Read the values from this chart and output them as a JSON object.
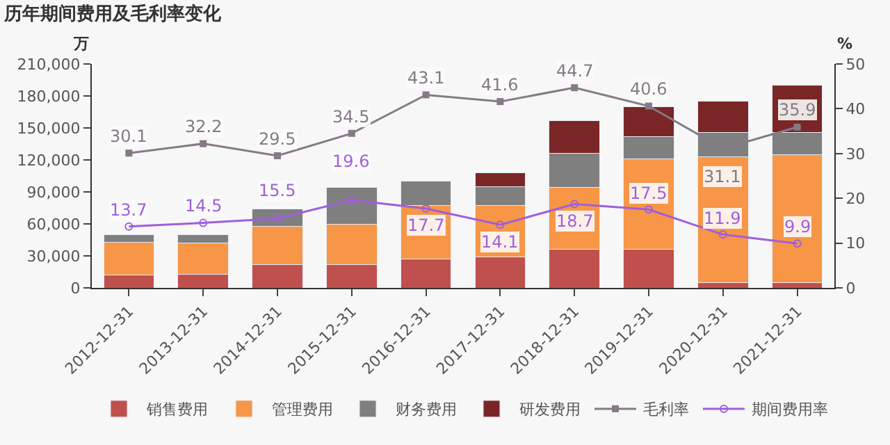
{
  "chart_data": {
    "type": "bar",
    "title": "历年期间费用及毛利率变化",
    "ylabel": "万",
    "y2label": "%",
    "categories": [
      "2012-12-31",
      "2013-12-31",
      "2014-12-31",
      "2015-12-31",
      "2016-12-31",
      "2017-12-31",
      "2018-12-31",
      "2019-12-31",
      "2020-12-31",
      "2021-12-31"
    ],
    "stacked": true,
    "legend": "bottom",
    "grid": false,
    "ylim": [
      0,
      210000
    ],
    "yticks": [
      {
        "value": 0,
        "label": "0"
      },
      {
        "value": 30000,
        "label": "30,000"
      },
      {
        "value": 60000,
        "label": "60,000"
      },
      {
        "value": 90000,
        "label": "90,000"
      },
      {
        "value": 120000,
        "label": "120,000"
      },
      {
        "value": 150000,
        "label": "150,000"
      },
      {
        "value": 180000,
        "label": "180,000"
      },
      {
        "value": 210000,
        "label": "210,000"
      }
    ],
    "y2lim": [
      0,
      50
    ],
    "y2ticks": [
      0,
      10,
      20,
      30,
      40,
      50
    ],
    "series": [
      {
        "name": "销售费用",
        "color": "#c0504d",
        "values": [
          12000,
          13000,
          22000,
          22000,
          27000,
          29000,
          36000,
          36000,
          5000,
          5000
        ]
      },
      {
        "name": "管理费用",
        "color": "#f79646",
        "values": [
          31000,
          29000,
          36000,
          38000,
          50000,
          48000,
          58000,
          85000,
          118000,
          120000
        ]
      },
      {
        "name": "财务费用",
        "color": "#7f7f7f",
        "values": [
          7000,
          8000,
          16000,
          34000,
          23000,
          18000,
          32000,
          21000,
          23000,
          21000
        ]
      },
      {
        "name": "研发费用",
        "color": "#7b2626",
        "values": [
          null,
          null,
          null,
          null,
          null,
          13000,
          31000,
          28000,
          29000,
          44000
        ]
      },
      {
        "name": "毛利率",
        "type": "line",
        "axis": "y2",
        "color": "#857a85",
        "marker": "square",
        "values": [
          30.1,
          32.2,
          29.5,
          34.5,
          43.1,
          41.6,
          44.7,
          40.6,
          31.1,
          35.9
        ],
        "value_labels": [
          "30.1",
          "32.2",
          "29.5",
          "34.5",
          "43.1",
          "41.6",
          "44.7",
          "40.6",
          "31.1",
          "35.9"
        ]
      },
      {
        "name": "期间费用率",
        "type": "line",
        "axis": "y2",
        "color": "#9f5fdc",
        "marker": "circle",
        "values": [
          13.7,
          14.5,
          15.5,
          19.6,
          17.7,
          14.1,
          18.7,
          17.5,
          11.9,
          9.9
        ],
        "value_labels": [
          "13.7",
          "14.5",
          "15.5",
          "19.6",
          "17.7",
          "14.1",
          "18.7",
          "17.5",
          "11.9",
          "9.9"
        ]
      }
    ]
  }
}
